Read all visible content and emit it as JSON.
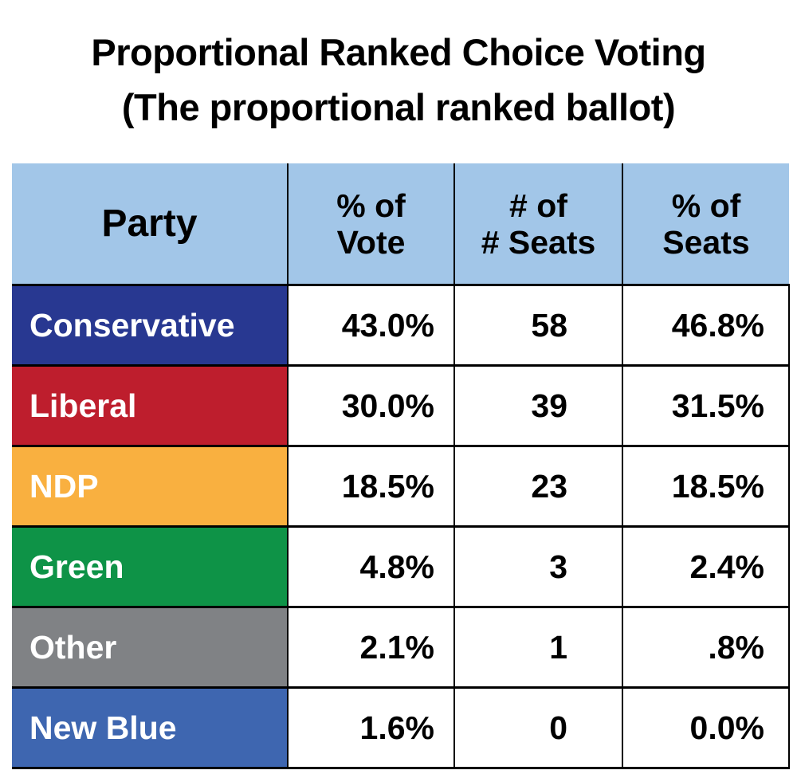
{
  "title_line1": "Proportional Ranked Choice Voting",
  "title_line2": "(The proportional ranked ballot)",
  "chart_data": {
    "type": "table",
    "title": "Proportional Ranked Choice Voting (The proportional ranked ballot)",
    "columns": [
      "Party",
      "% of\nVote",
      "# of\n# Seats",
      "% of\nSeats"
    ],
    "header_color": "#a2c6e8",
    "rows": [
      {
        "party": "Conservative",
        "color": "#283891",
        "vote_pct": "43.0%",
        "seats": "58",
        "seat_pct": "46.8%"
      },
      {
        "party": "Liberal",
        "color": "#be1e2d",
        "vote_pct": "30.0%",
        "seats": "39",
        "seat_pct": "31.5%"
      },
      {
        "party": "NDP",
        "color": "#f9b040",
        "vote_pct": "18.5%",
        "seats": "23",
        "seat_pct": "18.5%"
      },
      {
        "party": "Green",
        "color": "#0e9347",
        "vote_pct": "4.8%",
        "seats": "3",
        "seat_pct": "2.4%"
      },
      {
        "party": "Other",
        "color": "#808285",
        "vote_pct": "2.1%",
        "seats": "1",
        "seat_pct": ".8%"
      },
      {
        "party": "New Blue",
        "color": "#3e66b0",
        "vote_pct": "1.6%",
        "seats": "0",
        "seat_pct": "0.0%"
      }
    ]
  }
}
